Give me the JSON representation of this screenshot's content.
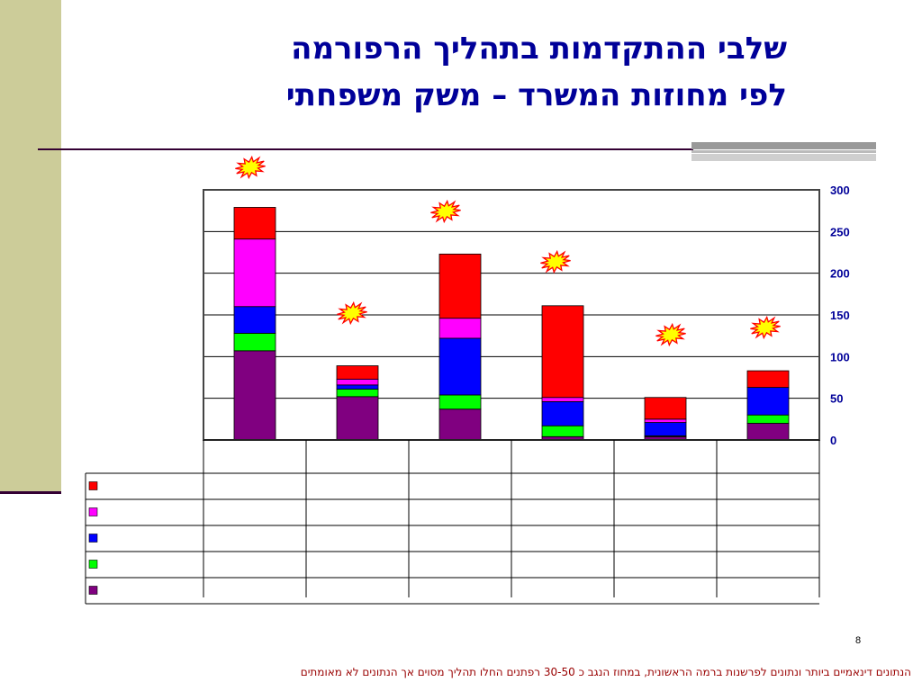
{
  "title": {
    "line1": "שלבי ההתקדמות בתהליך הרפורמה",
    "line2": "לפי מחוזות המשרד – משק משפחתי"
  },
  "page_number": "8",
  "footnote": "הנתונים דינאמיים ביותר ונתונים לפרשנות ברמה הראשונית, במחוז הנגב כ 30-50 רפתנים החלו תהליך מסוים אך הנתונים לא מאומתים",
  "chart_data": {
    "type": "bar",
    "stacked": true,
    "title": "",
    "xlabel": "",
    "ylabel": "",
    "ylim": [
      0,
      300
    ],
    "yticks": [
      0,
      50,
      100,
      150,
      200,
      250,
      300
    ],
    "y_axis_side": "right",
    "grid": true,
    "legend": "data-table",
    "categories": [
      "",
      "",
      "",
      "",
      "",
      ""
    ],
    "series": [
      {
        "color": "#800080",
        "values": [
          107,
          52,
          37,
          4,
          4,
          20
        ]
      },
      {
        "color": "#00ff00",
        "values": [
          21,
          9,
          17,
          13,
          1,
          10
        ]
      },
      {
        "color": "#0000ff",
        "values": [
          32,
          5,
          68,
          29,
          16,
          33
        ]
      },
      {
        "color": "#ff00ff",
        "values": [
          81,
          7,
          24,
          5,
          4,
          0
        ]
      },
      {
        "color": "#ff0000",
        "values": [
          38,
          16,
          77,
          110,
          26,
          20
        ]
      }
    ]
  },
  "icons": [
    "starburst-icon"
  ],
  "colors": {
    "left_strip": "#cccc99",
    "title_text": "#000099",
    "axis_text": "#000099",
    "footnote_text": "#990000",
    "starburst_fill": "#ffff00",
    "starburst_stroke": "#ff0000"
  }
}
